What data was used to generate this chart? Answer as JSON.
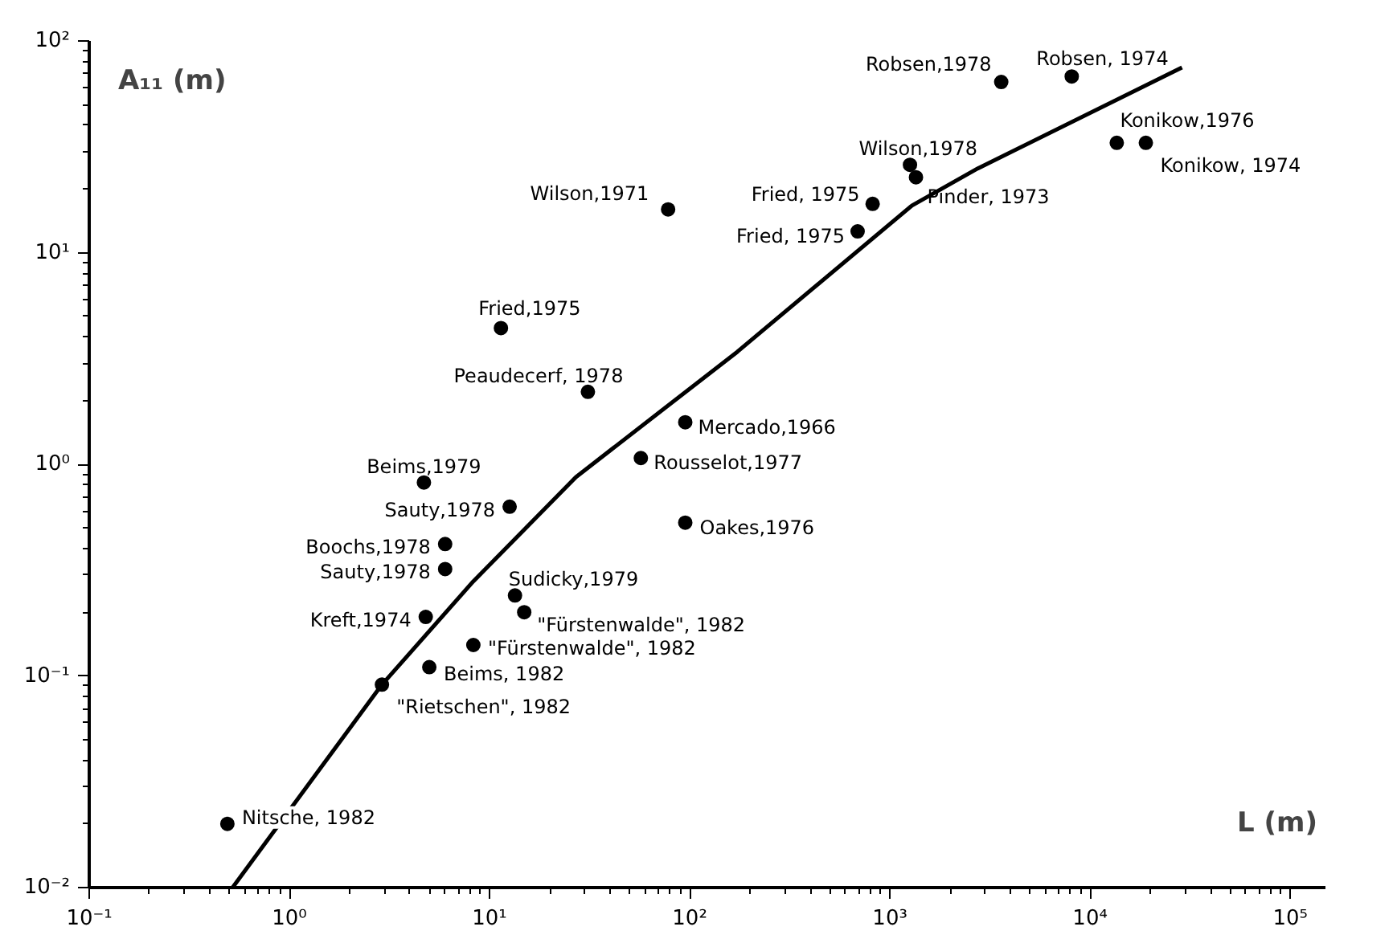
{
  "chart_data": {
    "type": "scatter",
    "xlabel": "L (m)",
    "ylabel": "A₁₁ (m)",
    "log": "xy",
    "grid": false,
    "marker": "circle",
    "xlim": [
      0.1,
      150000
    ],
    "ylim": [
      0.01,
      100
    ],
    "xticks": [
      {
        "value": 0.1,
        "label": "10⁻¹"
      },
      {
        "value": 1,
        "label": "10⁰"
      },
      {
        "value": 10,
        "label": "10¹"
      },
      {
        "value": 100,
        "label": "10²"
      },
      {
        "value": 1000,
        "label": "10³"
      },
      {
        "value": 10000,
        "label": "10⁴"
      },
      {
        "value": 100000,
        "label": "10⁵"
      }
    ],
    "yticks": [
      {
        "value": 0.01,
        "label": "10⁻²"
      },
      {
        "value": 0.1,
        "label": "10⁻¹"
      },
      {
        "value": 1,
        "label": "10⁰"
      },
      {
        "value": 10,
        "label": "10¹"
      },
      {
        "value": 100,
        "label": "10²"
      }
    ],
    "series": [
      {
        "color": "#000000",
        "x": [
          0.49,
          2.9,
          5.0,
          4.8,
          6.0,
          6.0,
          4.7,
          12.6,
          13.4,
          14.9,
          8.3,
          31,
          11.4,
          95,
          57,
          95,
          78,
          820,
          690,
          3600,
          8100,
          1260,
          1350,
          13600,
          19000
        ],
        "values": [
          0.02,
          0.091,
          0.11,
          0.19,
          0.32,
          0.42,
          0.82,
          0.63,
          0.24,
          0.2,
          0.14,
          2.2,
          4.4,
          1.58,
          1.07,
          0.53,
          16,
          17,
          12.6,
          64,
          68,
          26,
          22.7,
          33,
          33
        ]
      },
      {
        "type": "line",
        "color": "#000000",
        "marker": "none",
        "line_style": "solid",
        "x": [
          0.52,
          2.9,
          8.3,
          27,
          173,
          1290,
          2750,
          28800
        ],
        "values": [
          0.01,
          0.091,
          0.28,
          0.87,
          3.4,
          16.7,
          25,
          75
        ]
      }
    ],
    "annotations": [
      {
        "text": "Nitsche, 1982",
        "x": 0.49,
        "y": 0.02
      },
      {
        "text": "\"Rietschen\", 1982",
        "x": 2.9,
        "y": 0.091
      },
      {
        "text": "Beims, 1982",
        "x": 5.0,
        "y": 0.11
      },
      {
        "text": "Kreft,1974",
        "x": 4.8,
        "y": 0.19
      },
      {
        "text": "Sauty,1978",
        "x": 6.0,
        "y": 0.32
      },
      {
        "text": "Boochs,1978",
        "x": 6.0,
        "y": 0.42
      },
      {
        "text": "Beims,1979",
        "x": 4.7,
        "y": 0.82
      },
      {
        "text": "Sauty,1978",
        "x": 12.6,
        "y": 0.63
      },
      {
        "text": "Sudicky,1979",
        "x": 13.4,
        "y": 0.24
      },
      {
        "text": "\"Fürstenwalde\", 1982",
        "x": 14.9,
        "y": 0.2
      },
      {
        "text": "\"Fürstenwalde\", 1982",
        "x": 8.3,
        "y": 0.14
      },
      {
        "text": "Peaudecerf, 1978",
        "x": 31,
        "y": 2.2
      },
      {
        "text": "Fried,1975",
        "x": 11.4,
        "y": 4.4
      },
      {
        "text": "Mercado,1966",
        "x": 95,
        "y": 1.58
      },
      {
        "text": "Rousselot,1977",
        "x": 57,
        "y": 1.07
      },
      {
        "text": "Oakes,1976",
        "x": 95,
        "y": 0.53
      },
      {
        "text": "Wilson,1971",
        "x": 78,
        "y": 16
      },
      {
        "text": "Fried, 1975",
        "x": 820,
        "y": 17
      },
      {
        "text": "Fried, 1975",
        "x": 690,
        "y": 12.6
      },
      {
        "text": "Robsen,1978",
        "x": 3600,
        "y": 64
      },
      {
        "text": "Robsen, 1974",
        "x": 8100,
        "y": 68
      },
      {
        "text": "Wilson,1978",
        "x": 1260,
        "y": 26
      },
      {
        "text": "Pinder, 1973",
        "x": 1350,
        "y": 22.7
      },
      {
        "text": "Konikow,1976",
        "x": 13600,
        "y": 33
      },
      {
        "text": "Konikow, 1974",
        "x": 19000,
        "y": 33
      }
    ]
  }
}
